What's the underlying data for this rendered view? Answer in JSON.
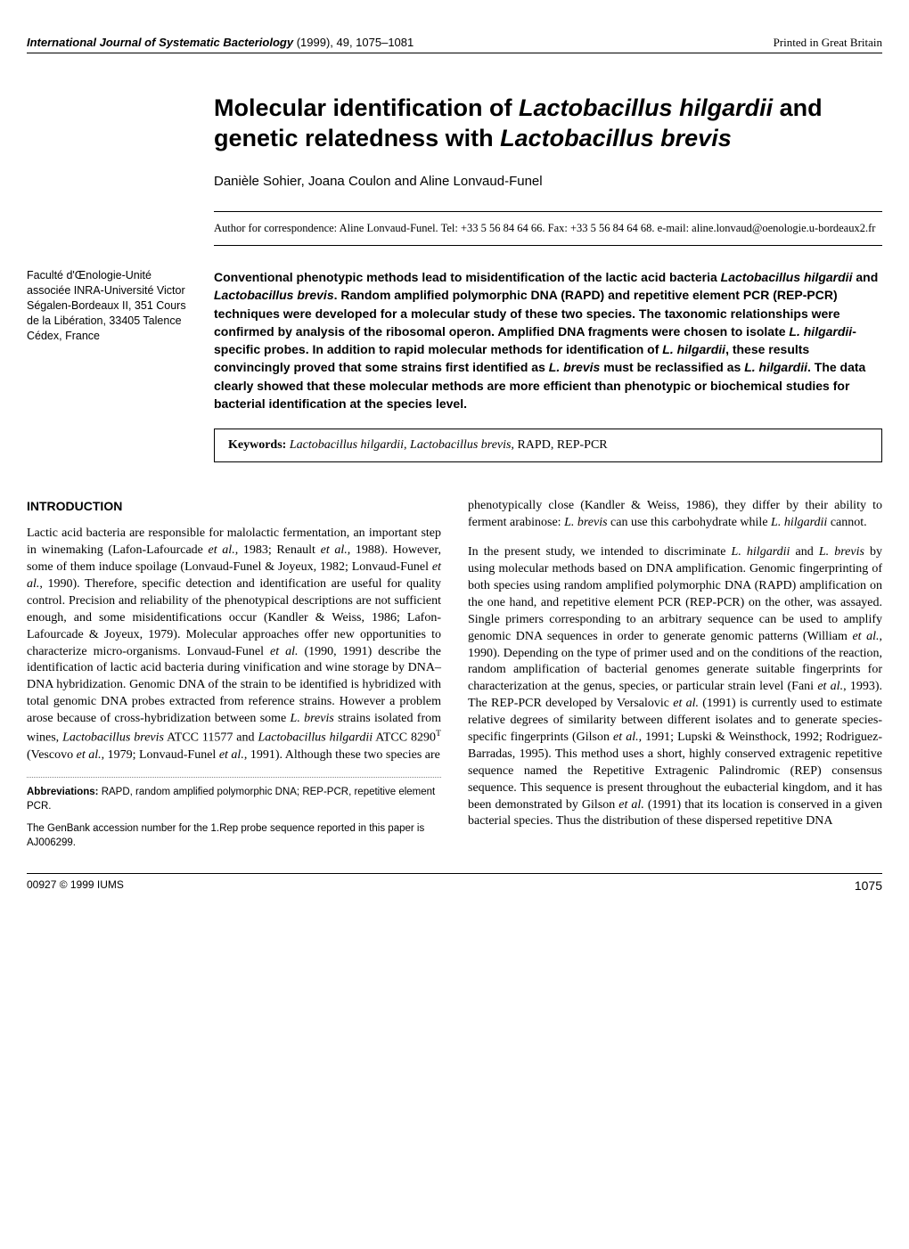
{
  "header": {
    "journal_name": "International Journal of Systematic Bacteriology",
    "citation_rest": " (1999), 49, 1075–1081",
    "printed": "Printed in Great Britain"
  },
  "title_parts": {
    "p1": "Molecular identification of ",
    "i1": "Lactobacillus hilgardii",
    "p2": " and genetic relatedness with ",
    "i2": "Lactobacillus brevis"
  },
  "authors": "Danièle Sohier, Joana Coulon and Aline Lonvaud-Funel",
  "correspondence": "Author for correspondence: Aline Lonvaud-Funel. Tel: +33 5 56 84 64 66. Fax: +33 5 56 84 64 68. e-mail: aline.lonvaud@oenologie.u-bordeaux2.fr",
  "affiliation": "Faculté d'Œnologie-Unité associée INRA-Université Victor Ségalen-Bordeaux II, 351 Cours de la Libération, 33405 Talence Cédex, France",
  "abstract": {
    "p1": "Conventional phenotypic methods lead to misidentification of the lactic acid bacteria ",
    "i1": "Lactobacillus hilgardii",
    "p2": " and ",
    "i2": "Lactobacillus brevis",
    "p3": ". Random amplified polymorphic DNA (RAPD) and repetitive element PCR (REP-PCR) techniques were developed for a molecular study of these two species. The taxonomic relationships were confirmed by analysis of the ribosomal operon. Amplified DNA fragments were chosen to isolate ",
    "i3": "L. hilgardii",
    "p4": "-specific probes. In addition to rapid molecular methods for identification of ",
    "i4": "L. hilgardii",
    "p5": ", these results convincingly proved that some strains first identified as ",
    "i5": "L. brevis",
    "p6": " must be reclassified as ",
    "i6": "L. hilgardii",
    "p7": ". The data clearly showed that these molecular methods are more efficient than phenotypic or biochemical studies for bacterial identification at the species level."
  },
  "keywords": {
    "label": "Keywords:",
    "i1": "Lactobacillus hilgardii",
    "sep1": ", ",
    "i2": "Lactobacillus brevis",
    "rest": ", RAPD, REP-PCR"
  },
  "intro_heading": "INTRODUCTION",
  "col1": {
    "para1": {
      "p1": "Lactic acid bacteria are responsible for malolactic fermentation, an important step in winemaking (Lafon-Lafourcade ",
      "i1": "et al.",
      "p2": ", 1983; Renault ",
      "i2": "et al.",
      "p3": ", 1988). However, some of them induce spoilage (Lonvaud-Funel & Joyeux, 1982; Lonvaud-Funel ",
      "i3": "et al.",
      "p4": ", 1990). Therefore, specific detection and identification are useful for quality control. Precision and reliability of the phenotypical descriptions are not sufficient enough, and some misidentifications occur (Kandler & Weiss, 1986; Lafon-Lafourcade & Joyeux, 1979). Molecular approaches offer new opportunities to characterize micro-organisms. Lonvaud-Funel ",
      "i4": "et al.",
      "p5": " (1990, 1991) describe the identification of lactic acid bacteria during vinification and wine storage by DNA–DNA hybridization. Genomic DNA of the strain to be identified is hybridized with total genomic DNA probes extracted from reference strains. However a problem arose because of cross-hybridization between some ",
      "i5": "L. brevis",
      "p6": " strains isolated from wines, ",
      "i6": "Lactobacillus brevis",
      "p7": " ATCC 11577 and ",
      "i7": "Lactobacillus hilgardii",
      "p8": " ATCC 8290",
      "sup1": "T",
      "p9": " (Vescovo ",
      "i8": "et al.",
      "p10": ", 1979; Lonvaud-Funel ",
      "i9": "et al.",
      "p11": ", 1991). Although these two species are"
    }
  },
  "footnotes": {
    "abbrev_label": "Abbreviations:",
    "abbrev_text": " RAPD, random amplified polymorphic DNA; REP-PCR, repetitive element PCR.",
    "genbank": "The GenBank accession number for the 1.Rep probe sequence reported in this paper is AJ006299."
  },
  "col2": {
    "para1": {
      "p1": "phenotypically close (Kandler & Weiss, 1986), they differ by their ability to ferment arabinose: ",
      "i1": "L. brevis",
      "p2": " can use this carbohydrate while ",
      "i2": "L. hilgardii",
      "p3": " cannot."
    },
    "para2": {
      "p1": "In the present study, we intended to discriminate ",
      "i1": "L. hilgardii",
      "p2": " and ",
      "i2": "L. brevis",
      "p3": " by using molecular methods based on DNA amplification. Genomic fingerprinting of both species using random amplified polymorphic DNA (RAPD) amplification on the one hand, and repetitive element PCR (REP-PCR) on the other, was assayed. Single primers corresponding to an arbitrary sequence can be used to amplify genomic DNA sequences in order to generate genomic patterns (William ",
      "i3": "et al.",
      "p4": ", 1990). Depending on the type of primer used and on the conditions of the reaction, random amplification of bacterial genomes generate suitable fingerprints for characterization at the genus, species, or particular strain level (Fani ",
      "i4": "et al.",
      "p5": ", 1993). The REP-PCR developed by Versalovic ",
      "i5": "et al.",
      "p6": " (1991) is currently used to estimate relative degrees of similarity between different isolates and to generate species-specific fingerprints (Gilson ",
      "i6": "et al.",
      "p7": ", 1991; Lupski & Weinsthock, 1992; Rodriguez-Barradas, 1995). This method uses a short, highly conserved extragenic repetitive sequence named the Repetitive Extragenic Palindromic (REP) consensus sequence. This sequence is present throughout the eubacterial kingdom, and it has been demonstrated by Gilson ",
      "i7": "et al.",
      "p8": " (1991) that its location is conserved in a given bacterial species. Thus the distribution of these dispersed repetitive DNA"
    }
  },
  "footer": {
    "copyright": "00927 © 1999 IUMS",
    "page": "1075"
  }
}
